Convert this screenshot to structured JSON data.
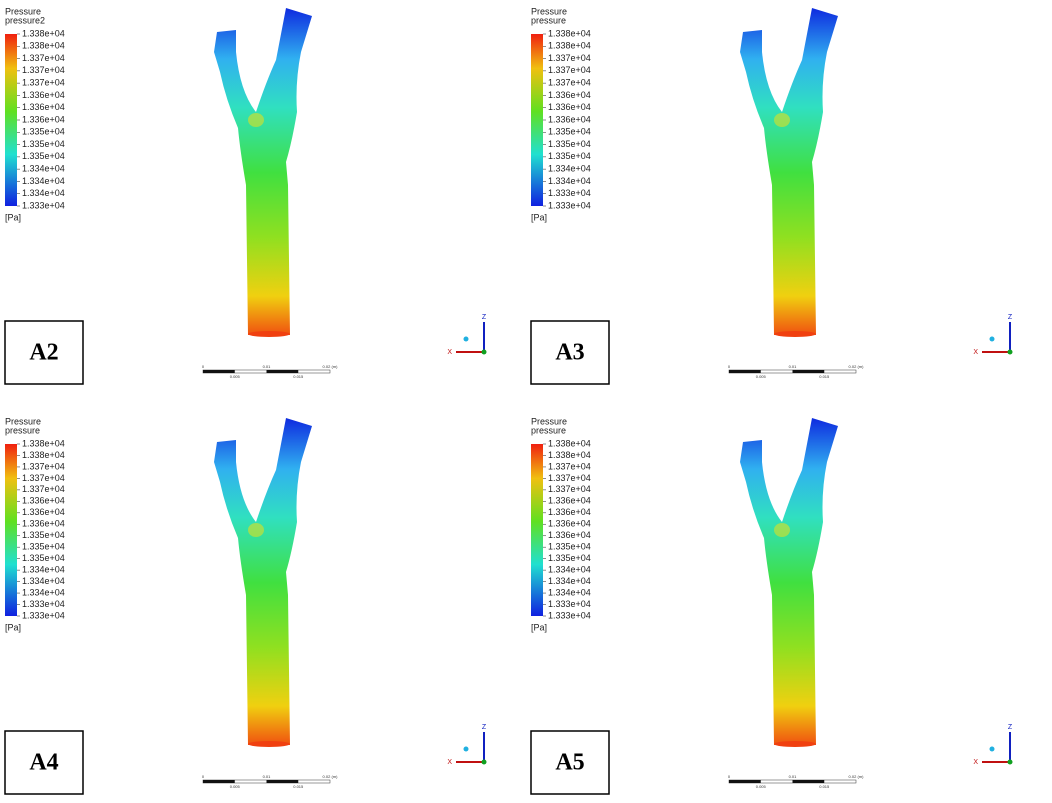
{
  "panels": [
    {
      "label": "A2",
      "legend_title": "Pressure",
      "variable": "pressure2",
      "ticks": [
        "1.338e+04",
        "1.338e+04",
        "1.337e+04",
        "1.337e+04",
        "1.337e+04",
        "1.336e+04",
        "1.336e+04",
        "1.336e+04",
        "1.335e+04",
        "1.335e+04",
        "1.335e+04",
        "1.334e+04",
        "1.334e+04",
        "1.334e+04",
        "1.333e+04"
      ],
      "unit": "[Pa]",
      "scale_labels": [
        "0",
        "0.005",
        "0.01",
        "0.015",
        "0.02 (m)"
      ],
      "axes": [
        "Z",
        "X"
      ]
    },
    {
      "label": "A3",
      "legend_title": "Pressure",
      "variable": "pressure",
      "ticks": [
        "1.338e+04",
        "1.338e+04",
        "1.337e+04",
        "1.337e+04",
        "1.337e+04",
        "1.336e+04",
        "1.336e+04",
        "1.336e+04",
        "1.335e+04",
        "1.335e+04",
        "1.335e+04",
        "1.334e+04",
        "1.334e+04",
        "1.333e+04",
        "1.333e+04"
      ],
      "unit": "[Pa]",
      "scale_labels": [
        "0",
        "0.005",
        "0.01",
        "0.015",
        "0.02 (m)"
      ],
      "axes": [
        "Z",
        "X"
      ]
    },
    {
      "label": "A4",
      "legend_title": "Pressure",
      "variable": "pressure",
      "ticks": [
        "1.338e+04",
        "1.338e+04",
        "1.337e+04",
        "1.337e+04",
        "1.337e+04",
        "1.336e+04",
        "1.336e+04",
        "1.336e+04",
        "1.335e+04",
        "1.335e+04",
        "1.335e+04",
        "1.334e+04",
        "1.334e+04",
        "1.334e+04",
        "1.333e+04",
        "1.333e+04"
      ],
      "unit": "[Pa]",
      "scale_labels": [
        "0",
        "0.005",
        "0.01",
        "0.015",
        "0.02 (m)"
      ],
      "axes": [
        "Z",
        "X"
      ]
    },
    {
      "label": "A5",
      "legend_title": "Pressure",
      "variable": "pressure",
      "ticks": [
        "1.338e+04",
        "1.338e+04",
        "1.337e+04",
        "1.337e+04",
        "1.337e+04",
        "1.336e+04",
        "1.336e+04",
        "1.336e+04",
        "1.336e+04",
        "1.335e+04",
        "1.335e+04",
        "1.334e+04",
        "1.334e+04",
        "1.334e+04",
        "1.333e+04",
        "1.333e+04"
      ],
      "unit": "[Pa]",
      "scale_labels": [
        "0",
        "0.005",
        "0.01",
        "0.015",
        "0.02 (m)"
      ],
      "axes": [
        "Z",
        "X"
      ]
    }
  ]
}
